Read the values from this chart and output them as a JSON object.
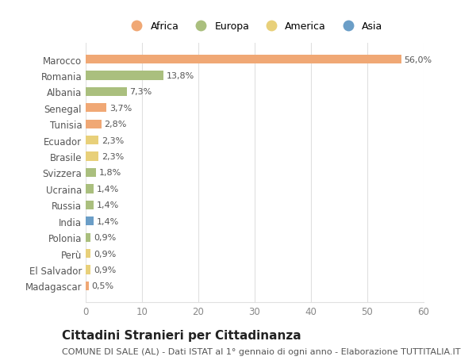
{
  "countries": [
    "Marocco",
    "Romania",
    "Albania",
    "Senegal",
    "Tunisia",
    "Ecuador",
    "Brasile",
    "Svizzera",
    "Ucraina",
    "Russia",
    "India",
    "Polonia",
    "Perù",
    "El Salvador",
    "Madagascar"
  ],
  "values": [
    56.0,
    13.8,
    7.3,
    3.7,
    2.8,
    2.3,
    2.3,
    1.8,
    1.4,
    1.4,
    1.4,
    0.9,
    0.9,
    0.9,
    0.5
  ],
  "labels": [
    "56,0%",
    "13,8%",
    "7,3%",
    "3,7%",
    "2,8%",
    "2,3%",
    "2,3%",
    "1,8%",
    "1,4%",
    "1,4%",
    "1,4%",
    "0,9%",
    "0,9%",
    "0,9%",
    "0,5%"
  ],
  "continents": [
    "Africa",
    "Europa",
    "Europa",
    "Africa",
    "Africa",
    "America",
    "America",
    "Europa",
    "Europa",
    "Europa",
    "Asia",
    "Europa",
    "America",
    "America",
    "Africa"
  ],
  "continent_colors": {
    "Africa": "#F0A875",
    "Europa": "#AABF7E",
    "America": "#E8D07A",
    "Asia": "#6B9EC7"
  },
  "legend_items": [
    "Africa",
    "Europa",
    "America",
    "Asia"
  ],
  "xlim": [
    0,
    60
  ],
  "xticks": [
    0,
    10,
    20,
    30,
    40,
    50,
    60
  ],
  "title": "Cittadini Stranieri per Cittadinanza",
  "subtitle": "COMUNE DI SALE (AL) - Dati ISTAT al 1° gennaio di ogni anno - Elaborazione TUTTITALIA.IT",
  "bg_color": "#ffffff",
  "grid_color": "#e0e0e0",
  "bar_height": 0.55,
  "title_fontsize": 11,
  "subtitle_fontsize": 8,
  "label_fontsize": 8,
  "tick_fontsize": 8.5
}
